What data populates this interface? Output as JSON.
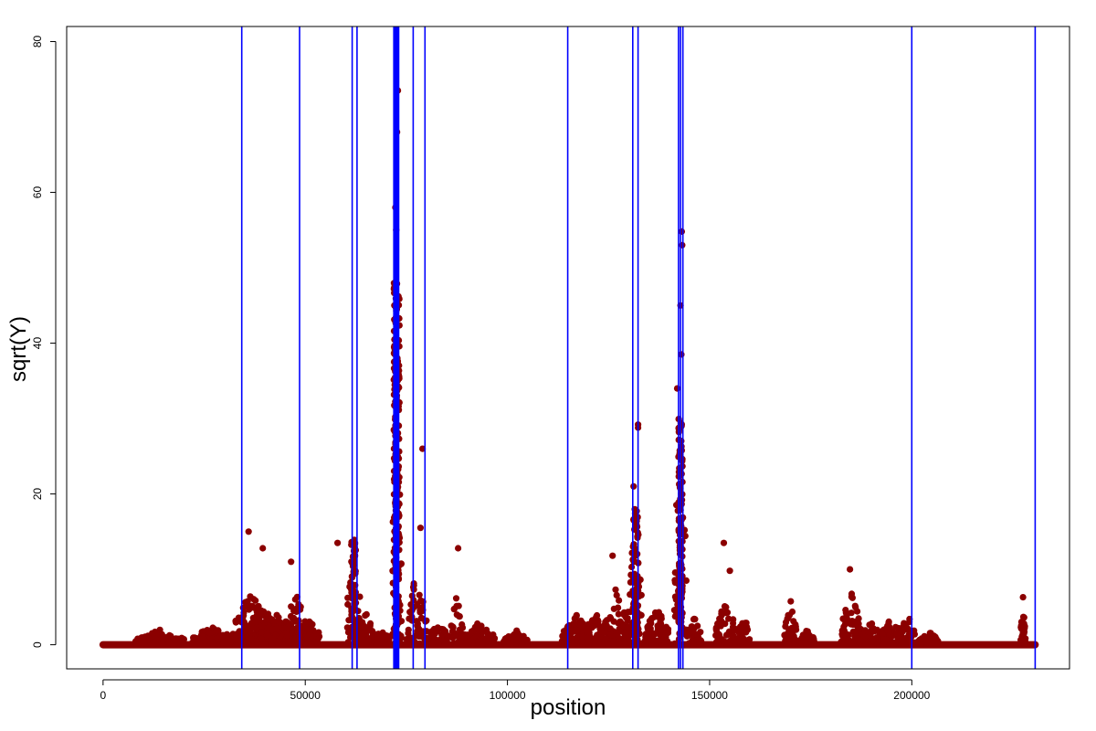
{
  "chart_data": {
    "type": "scatter",
    "title": "",
    "xlabel": "position",
    "ylabel": "sqrt(Y)",
    "xlim": [
      -9000,
      239000
    ],
    "ylim": [
      -3.2,
      82
    ],
    "xticks": [
      0,
      50000,
      100000,
      150000,
      200000
    ],
    "xtick_labels": [
      "0",
      "50000",
      "100000",
      "150000",
      "200000"
    ],
    "yticks": [
      0,
      20,
      40,
      60,
      80
    ],
    "ytick_labels": [
      "0",
      "20",
      "40",
      "60",
      "80"
    ],
    "grid": false,
    "legend": "none",
    "point_color": "#8B0000",
    "vline_color": "#0000FF",
    "vlines": [
      34300,
      48600,
      61600,
      62800,
      71900,
      72200,
      72500,
      72800,
      73100,
      76700,
      79600,
      114900,
      131000,
      132300,
      142300,
      142800,
      143400,
      200000,
      230500
    ],
    "baseline_range": [
      0,
      230500
    ],
    "clusters": [
      {
        "center": 36500,
        "width": 4500,
        "max": 7
      },
      {
        "center": 39500,
        "width": 5000,
        "max": 5
      },
      {
        "center": 43000,
        "width": 5000,
        "max": 4
      },
      {
        "center": 47500,
        "width": 2500,
        "max": 8
      },
      {
        "center": 50500,
        "width": 3000,
        "max": 4
      },
      {
        "center": 62000,
        "width": 1600,
        "max": 16
      },
      {
        "center": 64500,
        "width": 2500,
        "max": 5
      },
      {
        "center": 69000,
        "width": 2000,
        "max": 2
      },
      {
        "center": 72600,
        "width": 1200,
        "max": 40
      },
      {
        "center": 77500,
        "width": 2500,
        "max": 11
      },
      {
        "center": 83000,
        "width": 2500,
        "max": 3
      },
      {
        "center": 87500,
        "width": 1500,
        "max": 7
      },
      {
        "center": 93000,
        "width": 4000,
        "max": 3
      },
      {
        "center": 102000,
        "width": 3000,
        "max": 2
      },
      {
        "center": 117000,
        "width": 3500,
        "max": 4
      },
      {
        "center": 122000,
        "width": 4000,
        "max": 4
      },
      {
        "center": 127000,
        "width": 3000,
        "max": 8
      },
      {
        "center": 131500,
        "width": 1800,
        "max": 17
      },
      {
        "center": 137000,
        "width": 3000,
        "max": 5
      },
      {
        "center": 142800,
        "width": 1600,
        "max": 30
      },
      {
        "center": 146000,
        "width": 2000,
        "max": 4
      },
      {
        "center": 154000,
        "width": 2500,
        "max": 6
      },
      {
        "center": 158500,
        "width": 1500,
        "max": 4
      },
      {
        "center": 170000,
        "width": 1500,
        "max": 6
      },
      {
        "center": 174000,
        "width": 2000,
        "max": 2
      },
      {
        "center": 185000,
        "width": 2500,
        "max": 7
      },
      {
        "center": 190000,
        "width": 3000,
        "max": 3
      },
      {
        "center": 195000,
        "width": 2500,
        "max": 4
      },
      {
        "center": 199000,
        "width": 2000,
        "max": 4
      },
      {
        "center": 204000,
        "width": 2500,
        "max": 2
      },
      {
        "center": 227500,
        "width": 600,
        "max": 5
      },
      {
        "center": 14000,
        "width": 6000,
        "max": 2
      },
      {
        "center": 27000,
        "width": 5000,
        "max": 2.5
      }
    ],
    "outliers": [
      {
        "x": 36000,
        "y": 15
      },
      {
        "x": 39500,
        "y": 12.8
      },
      {
        "x": 46500,
        "y": 11
      },
      {
        "x": 58000,
        "y": 13.5
      },
      {
        "x": 72300,
        "y": 58
      },
      {
        "x": 72700,
        "y": 68
      },
      {
        "x": 72900,
        "y": 73.5
      },
      {
        "x": 72500,
        "y": 55
      },
      {
        "x": 79000,
        "y": 26
      },
      {
        "x": 78500,
        "y": 15.5
      },
      {
        "x": 87800,
        "y": 12.8
      },
      {
        "x": 126000,
        "y": 11.8
      },
      {
        "x": 132300,
        "y": 29.2
      },
      {
        "x": 132300,
        "y": 28.8
      },
      {
        "x": 131200,
        "y": 21
      },
      {
        "x": 142000,
        "y": 34
      },
      {
        "x": 142800,
        "y": 45
      },
      {
        "x": 143100,
        "y": 54.8
      },
      {
        "x": 143200,
        "y": 53
      },
      {
        "x": 143000,
        "y": 38.5
      },
      {
        "x": 153500,
        "y": 13.5
      },
      {
        "x": 155000,
        "y": 9.8
      },
      {
        "x": 184700,
        "y": 10
      },
      {
        "x": 227500,
        "y": 6.3
      }
    ]
  }
}
